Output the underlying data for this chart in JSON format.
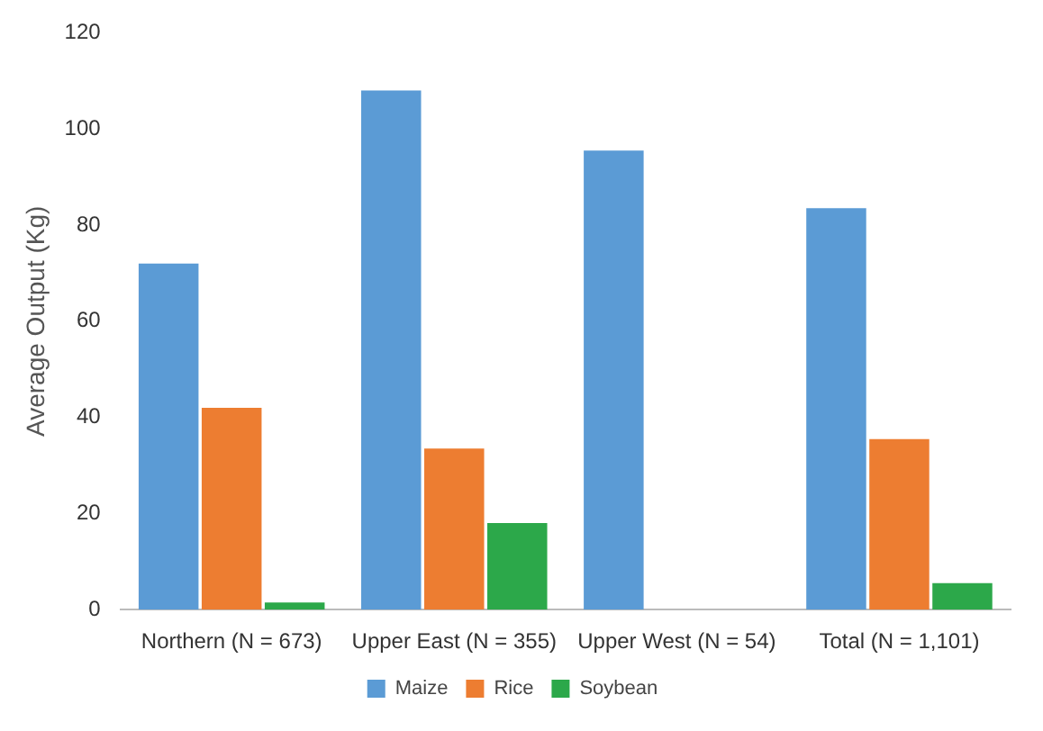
{
  "chart_data": {
    "type": "bar",
    "ylabel": "Average Output (Kg)",
    "categories": [
      "Northern (N = 673)",
      "Upper East (N = 355)",
      "Upper West (N = 54)",
      "Total (N = 1,101)"
    ],
    "series": [
      {
        "name": "Maize",
        "color": "#5b9bd5",
        "values": [
          72,
          108,
          95.5,
          83.5
        ]
      },
      {
        "name": "Rice",
        "color": "#ed7d31",
        "values": [
          42,
          33.5,
          null,
          35.5
        ]
      },
      {
        "name": "Soybean",
        "color": "#2ca84a",
        "values": [
          1.5,
          18,
          null,
          5.5
        ]
      }
    ],
    "ylim": [
      0,
      120
    ],
    "yticks": [
      0,
      20,
      40,
      60,
      80,
      100,
      120
    ],
    "grid": false,
    "legend": "bottom"
  }
}
